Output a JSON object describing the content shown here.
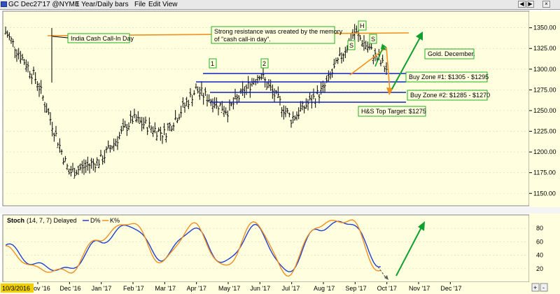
{
  "window": {
    "title": "GC Dec27'17 @NYME",
    "interval": "1 Year/Daily bars",
    "menu": [
      "File",
      "Edit",
      "View"
    ]
  },
  "colors": {
    "plot_bg": "#ffffe0",
    "bars": "#000000",
    "resistance": "#f09020",
    "support": "#1020c0",
    "arrow_green": "#10a030",
    "label_border": "#20b020",
    "stoch_d": "#2040d0",
    "stoch_k": "#f09020",
    "date_badge": "#f0d000"
  },
  "price_axis": {
    "ticks": [
      "1350.00",
      "1325.00",
      "1300.00",
      "1275.00",
      "1250.00",
      "1225.00",
      "1200.00",
      "1175.00",
      "1150.00"
    ]
  },
  "stoch_axis": {
    "ticks": [
      "80",
      "60",
      "40",
      "20"
    ]
  },
  "time_axis": {
    "start_badge": "10/3/2016",
    "labels": [
      "ov '16",
      "Dec '16",
      "Jan '17",
      "Feb '17",
      "Mar '17",
      "Apr '17",
      "May '17",
      "Jun '17",
      "Jul '17",
      "Aug '17",
      "Sep '17",
      "Oct '17",
      "Nov '17",
      "Dec '17"
    ]
  },
  "annotations": {
    "india": "India Cash Call-In Day",
    "resistance_line1": "Strong resistance was created by the memory",
    "resistance_line2": "of \"cash call-in day\".",
    "peak1": "1",
    "peak2": "2",
    "head": "H",
    "left_shoulder": "S",
    "right_shoulder": "S",
    "gold_dec": "Gold. December.",
    "buy1": "Buy Zone #1: $1305 - $1295",
    "buy2": "Buy Zone #2: $1285 - $1270",
    "target": "H&S Top Target: $1275"
  },
  "stoch_legend": {
    "name": "Stoch",
    "params": "(14, 7, 7) Delayed",
    "d_label": "D%",
    "k_label": "K%"
  },
  "chart_data": [
    {
      "type": "line",
      "title": "GC Dec27'17 @NYME 1 Year/Daily bars",
      "x": [
        "Oct '16",
        "Nov '16",
        "Dec '16",
        "Jan '17",
        "Feb '17",
        "Mar '17",
        "Apr '17",
        "May '17",
        "Jun '17",
        "Jul '17",
        "Aug '17",
        "Sep '17",
        "Oct '17"
      ],
      "series": [
        {
          "values": [
            1345,
            1285,
            1175,
            1190,
            1240,
            1222,
            1275,
            1250,
            1295,
            1240,
            1275,
            1345,
            1300
          ]
        }
      ],
      "ylim": [
        1135,
        1370
      ],
      "horizontal_levels": [
        {
          "value": 1352,
          "label": "India Cash Call-In Day"
        },
        {
          "value": 1305,
          "label": "Buy Zone #1 upper"
        },
        {
          "value": 1295,
          "label": "Buy Zone #1 lower"
        },
        {
          "value": 1285,
          "label": "Buy Zone #2 upper"
        },
        {
          "value": 1270,
          "label": "Buy Zone #2 lower"
        },
        {
          "value": 1275,
          "label": "H&S Top Target"
        }
      ]
    },
    {
      "type": "line",
      "title": "Stoch (14, 7, 7) Delayed",
      "x": [
        "Oct '16",
        "Nov '16",
        "Dec '16",
        "Jan '17",
        "Feb '17",
        "Mar '17",
        "Apr '17",
        "May '17",
        "Jun '17",
        "Jul '17",
        "Aug '17",
        "Sep '17",
        "Oct '17"
      ],
      "series": [
        {
          "name": "D%",
          "values": [
            55,
            25,
            18,
            60,
            85,
            35,
            80,
            28,
            82,
            15,
            80,
            90,
            25
          ]
        },
        {
          "name": "K%",
          "values": [
            50,
            20,
            15,
            65,
            90,
            30,
            85,
            22,
            88,
            12,
            85,
            93,
            15
          ]
        }
      ],
      "ylim": [
        0,
        100
      ]
    }
  ]
}
